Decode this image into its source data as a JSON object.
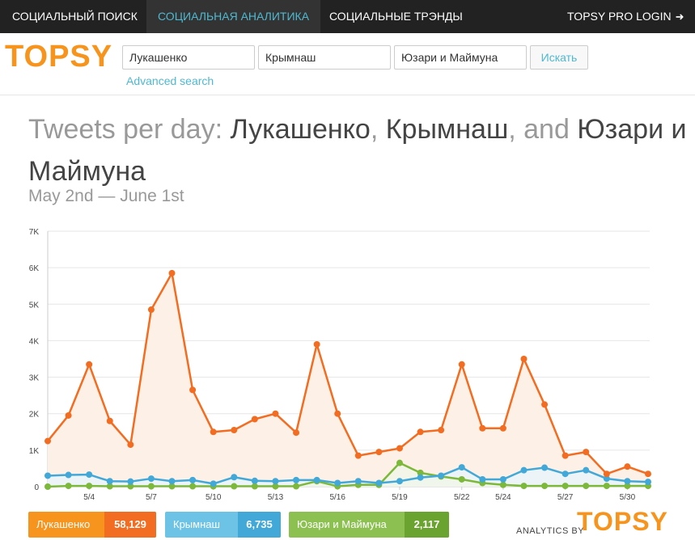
{
  "nav": {
    "items": [
      {
        "label": "СОЦИАЛЬНЫЙ ПОИСК"
      },
      {
        "label": "СОЦИАЛЬНАЯ АНАЛИТИКА"
      },
      {
        "label": "СОЦИАЛЬНЫЕ ТРЭНДЫ"
      }
    ],
    "active_index": 1,
    "login_label": "TOPSY PRO LOGIN"
  },
  "header": {
    "logo": "TOPSY",
    "search_terms": [
      "Лукашенко",
      "Крымнаш",
      "Юзари и Маймуна"
    ],
    "search_button": "Искать",
    "advanced_search": "Advanced search"
  },
  "title": {
    "prefix": "Tweets per day: ",
    "terms": [
      "Лукашенко",
      "Крымнаш",
      "Юзари и Маймуна"
    ],
    "sep1": ", ",
    "sep2": ", and ",
    "date_range": "May 2nd — June 1st"
  },
  "colors": {
    "series1": "#f26d21",
    "series2": "#41a8d8",
    "series3": "#7cb83a",
    "fill1": "#fdf0e6",
    "brand": "#f7941d",
    "link": "#4fb8d1"
  },
  "chart_data": {
    "type": "line",
    "x": [
      "5/2",
      "5/3",
      "5/4",
      "5/5",
      "5/6",
      "5/7",
      "5/8",
      "5/9",
      "5/10",
      "5/11",
      "5/12",
      "5/13",
      "5/14",
      "5/15",
      "5/16",
      "5/17",
      "5/18",
      "5/19",
      "5/20",
      "5/21",
      "5/22",
      "5/23",
      "5/24",
      "5/25",
      "5/26",
      "5/27",
      "5/28",
      "5/29",
      "5/30",
      "5/31"
    ],
    "xticks": [
      "5/4",
      "5/7",
      "5/10",
      "5/13",
      "5/16",
      "5/19",
      "5/22",
      "5/24",
      "5/27",
      "5/30"
    ],
    "yticks": [
      "0",
      "1K",
      "2K",
      "3K",
      "4K",
      "5K",
      "6K",
      "7K"
    ],
    "ylim": [
      0,
      7000
    ],
    "grid": true,
    "series": [
      {
        "name": "Лукашенко",
        "total": "58,129",
        "values": [
          1250,
          1950,
          3350,
          1800,
          1150,
          4850,
          5850,
          2650,
          1500,
          1550,
          1850,
          2000,
          1480,
          3900,
          2000,
          850,
          950,
          1050,
          1500,
          1550,
          3350,
          1600,
          1600,
          3500,
          2250,
          850,
          950,
          350,
          550,
          350
        ]
      },
      {
        "name": "Крымнаш",
        "total": "6,735",
        "values": [
          300,
          320,
          330,
          150,
          140,
          220,
          150,
          180,
          80,
          260,
          160,
          150,
          180,
          180,
          100,
          150,
          100,
          150,
          250,
          300,
          530,
          200,
          200,
          450,
          520,
          350,
          450,
          220,
          150,
          130
        ]
      },
      {
        "name": "Юзари и Маймуна",
        "total": "2,117",
        "values": [
          0,
          20,
          20,
          10,
          10,
          10,
          10,
          10,
          10,
          10,
          10,
          10,
          10,
          150,
          10,
          50,
          50,
          650,
          380,
          280,
          200,
          100,
          50,
          20,
          20,
          20,
          20,
          20,
          20,
          20
        ]
      }
    ]
  },
  "footer": {
    "analytics_by": "ANALYTICS BY",
    "logo": "TOPSY"
  }
}
